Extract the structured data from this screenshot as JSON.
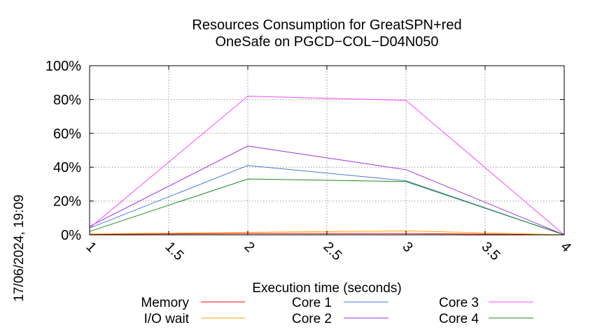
{
  "chart_data": {
    "type": "line",
    "title_lines": [
      "Resources Consumption for GreatSPN+red",
      "OneSafe on PGCD−COL−D04N050"
    ],
    "xlabel": "Execution time (seconds)",
    "ylabel": "",
    "timestamp": "17/06/2024, 19:09",
    "xlim": [
      1,
      4
    ],
    "ylim": [
      0,
      100
    ],
    "x_ticks": [
      1,
      1.5,
      2,
      2.5,
      3,
      3.5,
      4
    ],
    "x_tick_labels": [
      "1",
      "1.5",
      "2",
      "2.5",
      "3",
      "3.5",
      "4"
    ],
    "y_ticks": [
      0,
      20,
      40,
      60,
      80,
      100
    ],
    "y_tick_labels": [
      "0%",
      "20%",
      "40%",
      "60%",
      "80%",
      "100%"
    ],
    "grid": true,
    "legend_position": "bottom",
    "x": [
      1,
      2,
      3,
      4
    ],
    "series": [
      {
        "name": "Memory",
        "color": "#ff0000",
        "values": [
          0.3,
          0.8,
          0.8,
          0
        ]
      },
      {
        "name": "I/O wait",
        "color": "#ffa000",
        "values": [
          0.5,
          1.5,
          2.3,
          0
        ]
      },
      {
        "name": "Core 1",
        "color": "#4a7ad8",
        "values": [
          4,
          41,
          32,
          0
        ]
      },
      {
        "name": "Core 2",
        "color": "#9b30e0",
        "values": [
          5,
          52.5,
          38.5,
          0
        ]
      },
      {
        "name": "Core 3",
        "color": "#ff44ff",
        "values": [
          4,
          82,
          79.5,
          0
        ]
      },
      {
        "name": "Core 4",
        "color": "#1e8a1e",
        "values": [
          2,
          33,
          31.5,
          0
        ]
      }
    ]
  }
}
